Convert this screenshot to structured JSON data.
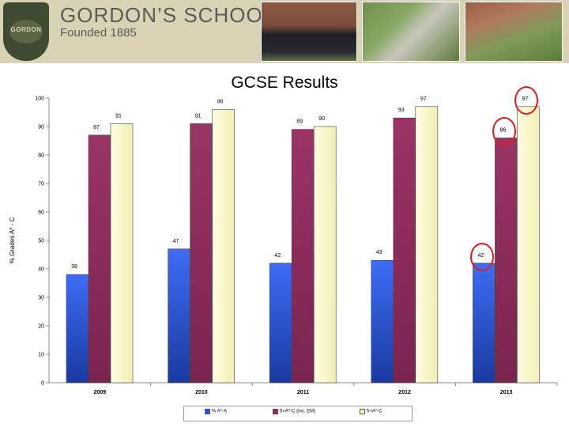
{
  "header": {
    "school_name": "GORDON’S SCHOOL",
    "founded": "Founded 1885",
    "crest_text": "GORDON"
  },
  "slide": {
    "title": "GCSE Results"
  },
  "chart_data": {
    "type": "bar",
    "categories": [
      "2009",
      "2010",
      "2011",
      "2012",
      "2013"
    ],
    "series": [
      {
        "name": "% A*-A",
        "values": [
          38,
          47,
          42,
          43,
          42
        ],
        "color": "#2a55d8"
      },
      {
        "name": "5+A*-C (inc. EM)",
        "values": [
          87,
          91,
          89,
          93,
          86
        ],
        "color": "#8e2d5c"
      },
      {
        "name": "5+A*-C",
        "values": [
          91,
          96,
          90,
          97,
          97
        ],
        "color": "#fbf8c6"
      }
    ],
    "ylabel": "% Grades A* - C",
    "ylim": [
      0,
      100
    ],
    "yticks": [
      0,
      10,
      20,
      30,
      40,
      50,
      60,
      70,
      80,
      90,
      100
    ],
    "highlighted_values": [
      {
        "category": "2013",
        "series": "% A*-A"
      },
      {
        "category": "2013",
        "series": "5+A*-C (inc. EM)"
      },
      {
        "category": "2013",
        "series": "5+A*-C"
      }
    ],
    "legend_position": "bottom",
    "grid": false
  }
}
